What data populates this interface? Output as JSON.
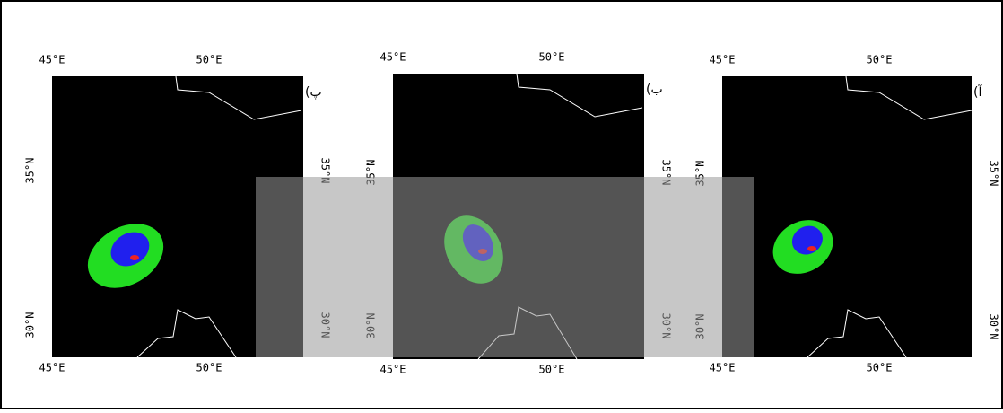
{
  "panels": [
    {
      "label": "(پ",
      "lon_ticks": [
        "45°E",
        "50°E"
      ],
      "lat_ticks": [
        "35°N",
        "30°N"
      ]
    },
    {
      "label": "(ب",
      "lon_ticks": [
        "45°E",
        "50°E"
      ],
      "lat_ticks": [
        "35°N",
        "30°N"
      ]
    },
    {
      "label": "(آ",
      "lon_ticks": [
        "45°E",
        "50°E"
      ],
      "lat_ticks": [
        "35°N",
        "30°N"
      ]
    }
  ]
}
